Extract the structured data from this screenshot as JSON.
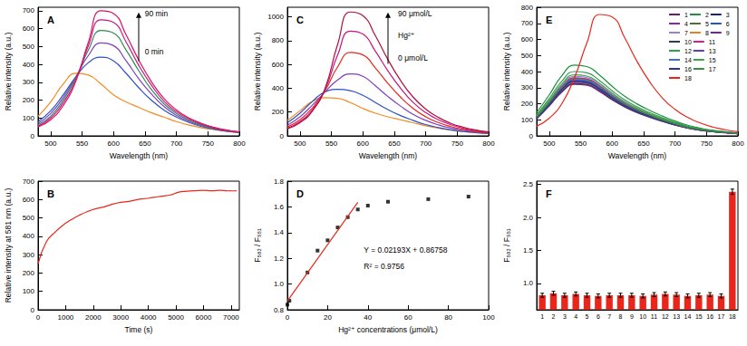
{
  "chart_data": [
    {
      "type": "line",
      "title": "A",
      "xlabel": "Wavelength (nm)",
      "ylabel": "Relative intensity (a.u.)",
      "x": [
        480,
        500,
        520,
        540,
        560,
        580,
        600,
        620,
        640,
        660,
        680,
        700,
        720,
        740,
        760,
        780,
        800
      ],
      "xlim": [
        480,
        800
      ],
      "xticks": [
        500,
        550,
        600,
        650,
        700,
        750,
        800
      ],
      "ylim": [
        0,
        720
      ],
      "yticks": [
        0,
        100,
        200,
        300,
        400,
        500,
        600,
        700
      ],
      "annotations": [
        "90 min",
        "0 min"
      ],
      "series": [
        {
          "color": "#f58a1f",
          "values": [
            110,
            190,
            290,
            350,
            340,
            290,
            230,
            190,
            160,
            130,
            105,
            80,
            60,
            45,
            35,
            25,
            18
          ]
        },
        {
          "color": "#2b50c8",
          "values": [
            80,
            140,
            230,
            330,
            410,
            440,
            420,
            350,
            270,
            200,
            145,
            105,
            75,
            52,
            37,
            26,
            19
          ]
        },
        {
          "color": "#7f3fbf",
          "values": [
            70,
            125,
            215,
            330,
            450,
            520,
            505,
            420,
            320,
            235,
            165,
            115,
            82,
            57,
            40,
            28,
            20
          ]
        },
        {
          "color": "#2e8b57",
          "values": [
            62,
            110,
            200,
            325,
            480,
            590,
            575,
            480,
            365,
            260,
            180,
            125,
            88,
            60,
            42,
            30,
            21
          ]
        },
        {
          "color": "#c71585",
          "values": [
            55,
            100,
            185,
            315,
            505,
            650,
            635,
            525,
            395,
            285,
            195,
            135,
            95,
            65,
            45,
            31,
            22
          ]
        },
        {
          "color": "#e0115f",
          "values": [
            50,
            90,
            170,
            305,
            525,
            700,
            685,
            565,
            425,
            305,
            210,
            145,
            100,
            70,
            48,
            32,
            22
          ]
        }
      ]
    },
    {
      "type": "line",
      "title": "B",
      "xlabel": "Time (s)",
      "ylabel": "Relative intensity at 581 nm (a.u.)",
      "x": [
        0,
        300,
        600,
        900,
        1200,
        1500,
        1800,
        2100,
        2400,
        2700,
        3000,
        3300,
        3600,
        3900,
        4200,
        4500,
        4800,
        5100,
        5400,
        5700,
        6000,
        6300,
        6600,
        6900,
        7200
      ],
      "xlim": [
        0,
        7300
      ],
      "xticks": [
        0,
        1000,
        2000,
        3000,
        4000,
        5000,
        6000,
        7000
      ],
      "ylim": [
        0,
        700
      ],
      "yticks": [
        0,
        100,
        200,
        300,
        400,
        500,
        600,
        700
      ],
      "series": [
        {
          "color": "#e8261c",
          "values": [
            250,
            370,
            420,
            460,
            490,
            515,
            535,
            550,
            560,
            575,
            585,
            590,
            600,
            605,
            612,
            618,
            625,
            640,
            645,
            648,
            650,
            648,
            650,
            647,
            648
          ]
        }
      ]
    },
    {
      "type": "line",
      "title": "C",
      "xlabel": "Wavelength (nm)",
      "ylabel": "Relative intensity (a.u.)",
      "x": [
        480,
        500,
        520,
        540,
        560,
        580,
        600,
        620,
        640,
        660,
        680,
        700,
        720,
        740,
        760,
        780,
        800
      ],
      "xlim": [
        480,
        800
      ],
      "xticks": [
        500,
        550,
        600,
        650,
        700,
        750,
        800
      ],
      "ylim": [
        0,
        1080
      ],
      "yticks": [
        0,
        200,
        400,
        600,
        800,
        1000
      ],
      "annotations": [
        "90 μmol/L",
        "Hg²⁺",
        "0 μmol/L"
      ],
      "series": [
        {
          "color": "#f58a1f",
          "values": [
            130,
            210,
            290,
            320,
            315,
            280,
            230,
            190,
            160,
            135,
            110,
            85,
            65,
            48,
            36,
            26,
            19
          ]
        },
        {
          "color": "#2b50c8",
          "values": [
            110,
            190,
            290,
            370,
            390,
            380,
            340,
            280,
            220,
            170,
            130,
            95,
            70,
            50,
            37,
            27,
            19
          ]
        },
        {
          "color": "#7f3fbf",
          "values": [
            90,
            160,
            260,
            370,
            470,
            520,
            500,
            420,
            330,
            250,
            180,
            130,
            92,
            65,
            46,
            32,
            23
          ]
        },
        {
          "color": "#e8261c",
          "values": [
            75,
            135,
            235,
            380,
            580,
            700,
            680,
            570,
            440,
            325,
            230,
            160,
            112,
            78,
            54,
            37,
            26
          ]
        },
        {
          "color": "#c71585",
          "values": [
            65,
            120,
            220,
            390,
            680,
            880,
            855,
            710,
            545,
            400,
            280,
            195,
            135,
            93,
            64,
            44,
            30
          ]
        },
        {
          "color": "#b0103a",
          "values": [
            60,
            110,
            210,
            400,
            770,
            1040,
            1010,
            840,
            640,
            465,
            325,
            225,
            155,
            105,
            72,
            49,
            33
          ]
        }
      ]
    },
    {
      "type": "scatter",
      "title": "D",
      "xlabel": "Hg²⁺ concentrations (μmol/L)",
      "ylabel": "F₅₈₂ / F₅₅₁",
      "xlim": [
        0,
        100
      ],
      "xticks": [
        0,
        20,
        40,
        60,
        80,
        100
      ],
      "ylim": [
        0.8,
        1.8
      ],
      "yticks": [
        0.8,
        {
          "value": 1,
          "label": "1.0"
        },
        1.2,
        1.4,
        1.6,
        1.8
      ],
      "annotations": [
        "Y = 0.02193X + 0.86758",
        "R² = 0.9756"
      ],
      "series": [
        {
          "type": "scatter",
          "marker": "square",
          "color": "#000000",
          "x": [
            0,
            1,
            10,
            15,
            20,
            25,
            30,
            35,
            40,
            50,
            70,
            90
          ],
          "values": [
            0.84,
            0.87,
            1.09,
            1.26,
            1.34,
            1.44,
            1.52,
            1.58,
            1.61,
            1.64,
            1.66,
            1.68
          ]
        },
        {
          "type": "line",
          "color": "#e8261c",
          "x": [
            0,
            35
          ],
          "values": [
            0.868,
            1.636
          ]
        }
      ]
    },
    {
      "type": "line",
      "title": "E",
      "xlabel": "Wavelength (nm)",
      "ylabel": "Relative intensity (a.u.)",
      "x": [
        480,
        500,
        520,
        540,
        560,
        580,
        600,
        620,
        640,
        660,
        680,
        700,
        720,
        740,
        760,
        780,
        800
      ],
      "xlim": [
        480,
        800
      ],
      "xticks": [
        500,
        550,
        600,
        650,
        700,
        750,
        800
      ],
      "ylim": [
        0,
        800
      ],
      "yticks": [
        0,
        100,
        200,
        300,
        400,
        500,
        600,
        700,
        800
      ],
      "legend": "upper right",
      "series": [
        {
          "name": "1",
          "color": "#6a1b6e",
          "values": [
            109,
            191,
            281,
            330,
            323,
            284,
            231,
            185,
            149,
            119,
            92,
            69,
            50,
            36,
            26,
            20,
            13
          ]
        },
        {
          "name": "2",
          "color": "#1f8f3a",
          "values": [
            145,
            255,
            374,
            440,
            431,
            378,
            308,
            246,
            198,
            158,
            123,
            92,
            66,
            48,
            35,
            26,
            18
          ]
        },
        {
          "name": "3",
          "color": "#1a237e",
          "values": [
            112,
            197,
            289,
            340,
            333,
            292,
            238,
            190,
            153,
            122,
            95,
            71,
            51,
            37,
            27,
            20,
            14
          ]
        },
        {
          "name": "4",
          "color": "#8e24aa",
          "values": [
            106,
            186,
            272,
            320,
            314,
            275,
            224,
            179,
            144,
            115,
            90,
            67,
            48,
            35,
            26,
            19,
            13
          ]
        },
        {
          "name": "5",
          "color": "#556b2f",
          "values": [
            119,
            209,
            306,
            360,
            353,
            310,
            252,
            202,
            162,
            130,
            101,
            76,
            54,
            40,
            29,
            22,
            14
          ]
        },
        {
          "name": "6",
          "color": "#1e56c8",
          "values": [
            116,
            203,
            298,
            350,
            343,
            301,
            245,
            196,
            158,
            126,
            98,
            74,
            53,
            39,
            28,
            21,
            14
          ]
        },
        {
          "name": "7",
          "color": "#9c7ed6",
          "values": [
            122,
            215,
            315,
            370,
            363,
            318,
            259,
            207,
            167,
            133,
            104,
            78,
            56,
            41,
            30,
            22,
            15
          ]
        },
        {
          "name": "8",
          "color": "#e67e22",
          "values": [
            109,
            191,
            281,
            330,
            323,
            284,
            231,
            185,
            149,
            119,
            92,
            69,
            50,
            36,
            26,
            20,
            13
          ]
        },
        {
          "name": "9",
          "color": "#7b1fa2",
          "values": [
            114,
            200,
            293,
            345,
            338,
            297,
            242,
            193,
            155,
            124,
            97,
            72,
            52,
            38,
            28,
            21,
            14
          ]
        },
        {
          "name": "10",
          "color": "#2f3b4c",
          "values": [
            107,
            189,
            276,
            325,
            319,
            280,
            228,
            182,
            146,
            117,
            91,
            68,
            49,
            36,
            26,
            20,
            13
          ]
        },
        {
          "name": "11",
          "color": "#d81b9a",
          "values": [
            119,
            209,
            306,
            360,
            353,
            310,
            252,
            202,
            162,
            130,
            101,
            76,
            54,
            40,
            29,
            22,
            14
          ]
        },
        {
          "name": "12",
          "color": "#2e9e4f",
          "values": [
            132,
            232,
            340,
            400,
            392,
            344,
            280,
            224,
            180,
            144,
            112,
            84,
            60,
            44,
            32,
            24,
            16
          ]
        },
        {
          "name": "13",
          "color": "#673ab7",
          "values": [
            111,
            194,
            285,
            335,
            328,
            288,
            235,
            188,
            151,
            121,
            94,
            70,
            50,
            37,
            27,
            20,
            13
          ]
        },
        {
          "name": "14",
          "color": "#3f6fd8",
          "values": [
            116,
            203,
            298,
            350,
            343,
            301,
            245,
            196,
            158,
            126,
            98,
            74,
            53,
            39,
            28,
            21,
            14
          ]
        },
        {
          "name": "15",
          "color": "#43a047",
          "values": [
            125,
            220,
            323,
            380,
            372,
            327,
            266,
            213,
            171,
            137,
            106,
            80,
            57,
            42,
            30,
            23,
            15
          ]
        },
        {
          "name": "16",
          "color": "#283593",
          "values": [
            112,
            197,
            289,
            340,
            333,
            292,
            238,
            190,
            153,
            122,
            95,
            71,
            51,
            37,
            27,
            20,
            14
          ]
        },
        {
          "name": "17",
          "color": "#388e3c",
          "values": [
            117,
            206,
            302,
            355,
            348,
            305,
            249,
            199,
            160,
            128,
            99,
            75,
            53,
            39,
            28,
            21,
            14
          ]
        },
        {
          "name": "18",
          "color": "#e8261c",
          "values": [
            60,
            110,
            200,
            360,
            580,
            755,
            740,
            610,
            460,
            335,
            235,
            165,
            115,
            80,
            55,
            38,
            26
          ]
        }
      ]
    },
    {
      "type": "bar",
      "title": "F",
      "ylabel": "F₅₈₂ / F₅₅₁",
      "categories": [
        "1",
        "2",
        "3",
        "4",
        "5",
        "6",
        "7",
        "8",
        "9",
        "10",
        "11",
        "12",
        "13",
        "14",
        "15",
        "16",
        "17",
        "18"
      ],
      "values": [
        0.82,
        0.85,
        0.82,
        0.84,
        0.82,
        0.81,
        0.82,
        0.82,
        0.82,
        0.81,
        0.83,
        0.84,
        0.83,
        0.81,
        0.82,
        0.83,
        0.81,
        2.39
      ],
      "errors": [
        0.03,
        0.03,
        0.03,
        0.03,
        0.03,
        0.03,
        0.03,
        0.03,
        0.03,
        0.03,
        0.03,
        0.03,
        0.03,
        0.03,
        0.03,
        0.03,
        0.03,
        0.04
      ],
      "color": "#e8261c",
      "ylim": [
        0.6,
        2.55
      ],
      "yticks": [
        {
          "value": 1,
          "label": "1.0"
        },
        1.5,
        {
          "value": 2,
          "label": "2.0"
        },
        2.5
      ]
    }
  ]
}
